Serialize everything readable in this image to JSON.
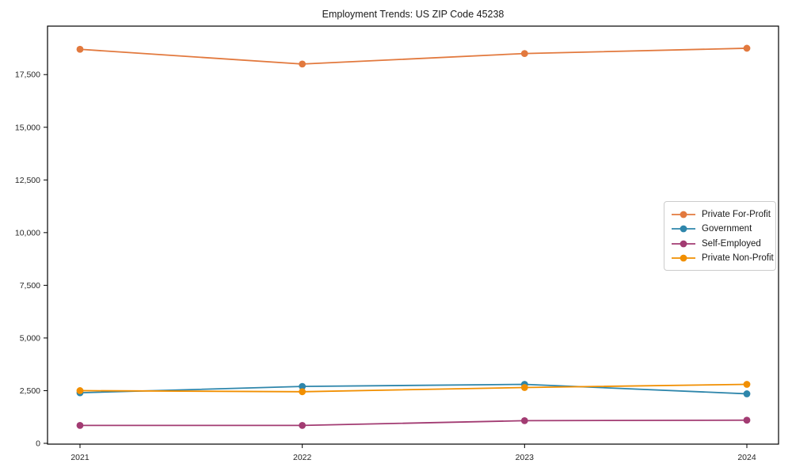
{
  "title": "Employment Trends: US ZIP Code 45238",
  "chart_data": {
    "type": "line",
    "title": "Employment Trends: US ZIP Code 45238",
    "xlabel": "",
    "ylabel": "",
    "x": [
      2021,
      2022,
      2023,
      2024
    ],
    "series": [
      {
        "name": "Private For-Profit",
        "color": "#E2793E",
        "values": [
          18700,
          18000,
          18500,
          18750
        ]
      },
      {
        "name": "Government",
        "color": "#2E86AB",
        "values": [
          2400,
          2700,
          2800,
          2350
        ]
      },
      {
        "name": "Self-Employed",
        "color": "#A23B72",
        "values": [
          850,
          850,
          1075,
          1100
        ]
      },
      {
        "name": "Private Non-Profit",
        "color": "#F18F01",
        "values": [
          2500,
          2450,
          2650,
          2800
        ]
      }
    ],
    "ylim": [
      0,
      19800
    ],
    "yticks": [
      0,
      2500,
      5000,
      7500,
      10000,
      12500,
      15000,
      17500
    ],
    "grid": false,
    "legend_position": "right-middle",
    "axis_color": "#000000",
    "marker": "circle"
  }
}
